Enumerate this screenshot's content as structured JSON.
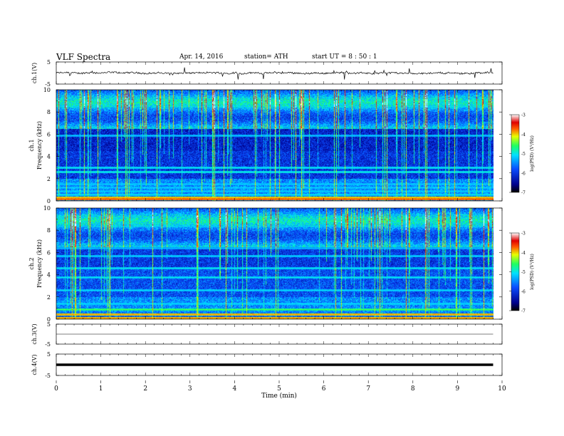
{
  "header": {
    "title": "VLF  Spectra",
    "date": "Apr. 14,  2016",
    "station": "station= ATH",
    "start": "start  UT  =   8  : 50 : 1"
  },
  "chart_data": {
    "type": "heatmap",
    "panels": [
      {
        "id": "ch1_wave",
        "type": "line",
        "ylabel": "ch.1(V)",
        "ylim": [
          -5,
          5
        ],
        "yticks": [
          "5",
          "-5"
        ],
        "baseline": 0
      },
      {
        "id": "ch1_spec",
        "type": "heatmap",
        "ylabel": "ch.1\nFrequency  (kHz)",
        "ylim": [
          0,
          10
        ],
        "yticks": [
          "0",
          "2",
          "4",
          "6",
          "8",
          "10"
        ],
        "colorbar": {
          "label": "log(PSD) (V²/Hz)",
          "range": [
            -7,
            -3
          ],
          "ticks": [
            "-3",
            "-4",
            "-5",
            "-6",
            "-7"
          ]
        }
      },
      {
        "id": "ch2_spec",
        "type": "heatmap",
        "ylabel": "ch.2\nFrequency  (kHz)",
        "ylim": [
          0,
          10
        ],
        "yticks": [
          "0",
          "2",
          "4",
          "6",
          "8",
          "10"
        ],
        "colorbar": {
          "label": "log(PSD) (V²/Hz)",
          "range": [
            -7,
            -3
          ],
          "ticks": [
            "-3",
            "-4",
            "-5",
            "-6",
            "-7"
          ]
        }
      },
      {
        "id": "ch3_wave",
        "type": "line",
        "ylabel": "ch.3(V)",
        "ylim": [
          -5,
          5
        ],
        "yticks": [
          "5",
          "-5"
        ],
        "baseline": 0
      },
      {
        "id": "ch4_wave",
        "type": "line",
        "ylabel": "ch.4(V)",
        "ylim": [
          -5,
          5
        ],
        "yticks": [
          "5",
          "-5"
        ],
        "baseline": 0
      }
    ],
    "x": {
      "label": "Time  (min)",
      "range": [
        0,
        10
      ],
      "ticks": [
        "0",
        "1",
        "2",
        "3",
        "4",
        "5",
        "6",
        "7",
        "8",
        "9",
        "10"
      ],
      "data_end": 9.8
    }
  }
}
